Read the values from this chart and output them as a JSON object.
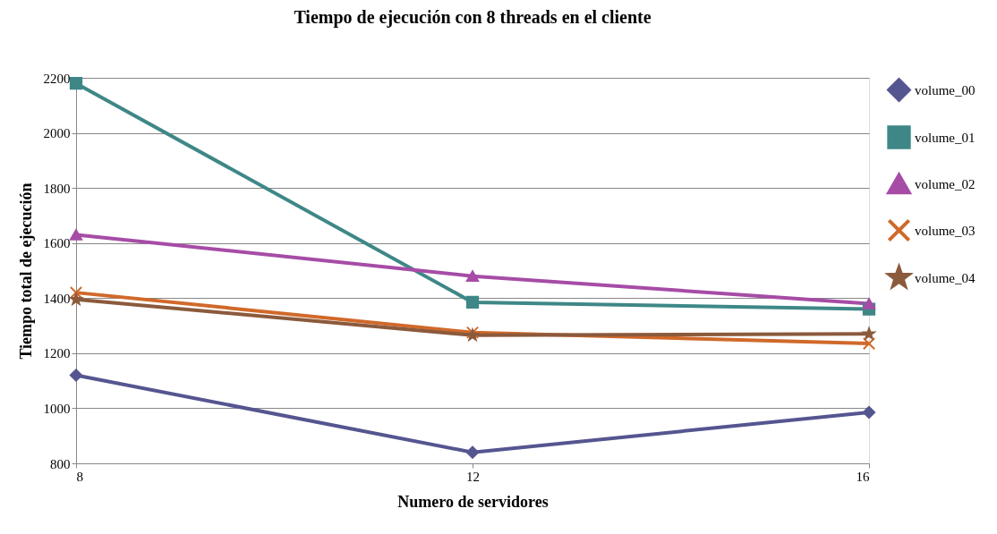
{
  "chart_data": {
    "type": "line",
    "title": "Tiempo de ejecución con 8 threads en el cliente",
    "xlabel": "Numero de servidores",
    "ylabel": "Tiempo total de ejecución",
    "x": [
      8,
      12,
      16
    ],
    "xlim": [
      8,
      16
    ],
    "xticks": [
      8,
      12,
      16
    ],
    "ylim": [
      800,
      2200
    ],
    "yticks": [
      800,
      1000,
      1200,
      1400,
      1600,
      1800,
      2000,
      2200
    ],
    "grid": "y",
    "legend": "right",
    "line_style": "solid",
    "series": [
      {
        "name": "volume_00",
        "color": "#555590",
        "marker": "diamond",
        "values": [
          1120,
          840,
          985
        ]
      },
      {
        "name": "volume_01",
        "color": "#3f8787",
        "marker": "square",
        "values": [
          2180,
          1385,
          1360
        ]
      },
      {
        "name": "volume_02",
        "color": "#a64ca6",
        "marker": "triangle",
        "values": [
          1630,
          1480,
          1380
        ]
      },
      {
        "name": "volume_03",
        "color": "#d0692a",
        "marker": "cross",
        "values": [
          1420,
          1275,
          1235
        ]
      },
      {
        "name": "volume_04",
        "color": "#8b5a3c",
        "marker": "star",
        "values": [
          1395,
          1265,
          1270
        ]
      }
    ]
  }
}
